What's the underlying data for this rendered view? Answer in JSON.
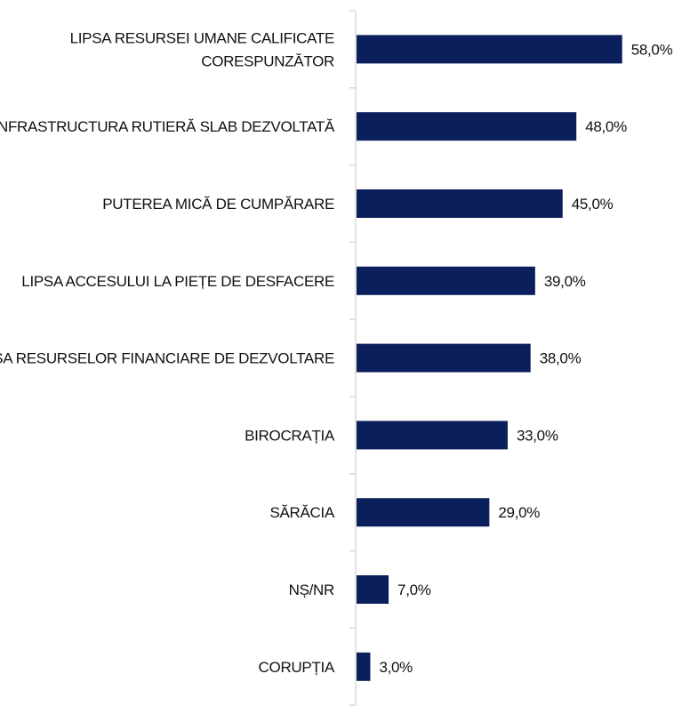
{
  "chart_data": {
    "type": "bar",
    "orientation": "horizontal",
    "categories": [
      [
        "LIPSA RESURSEI UMANE CALIFICATE",
        "CORESPUNZĂTOR"
      ],
      [
        "INFRASTRUCTURA RUTIERĂ SLAB DEZVOLTATĂ"
      ],
      [
        "PUTEREA MICĂ DE CUMPĂRARE"
      ],
      [
        "LIPSA ACCESULUI LA PIEȚE DE DESFACERE"
      ],
      [
        "LIPSA RESURSELOR FINANCIARE DE DEZVOLTARE"
      ],
      [
        "BIROCRAȚIA"
      ],
      [
        "SĂRĂCIA"
      ],
      [
        "NȘ/NR"
      ],
      [
        "CORUPȚIA"
      ]
    ],
    "values": [
      58,
      48,
      45,
      39,
      38,
      33,
      29,
      7,
      3
    ],
    "value_labels": [
      "58,0%",
      "48,0%",
      "45,0%",
      "39,0%",
      "38,0%",
      "33,0%",
      "29,0%",
      "7,0%",
      "3,0%"
    ],
    "title": "",
    "xlabel": "",
    "ylabel": "",
    "xlim": [
      0,
      100
    ],
    "grid": false,
    "legend": "none",
    "bar_color": "#0b1f5c",
    "axis_color": "#d9d9d9"
  }
}
